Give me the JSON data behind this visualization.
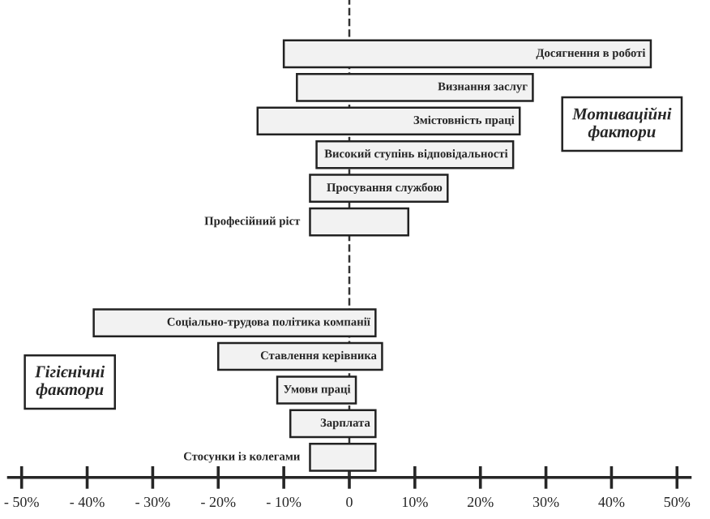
{
  "chart_data": {
    "type": "bar",
    "orientation": "horizontal",
    "categories": [
      "Досягнення в роботі",
      "Визнання заслуг",
      "Змістовність праці",
      "Високий ступінь відповідальності",
      "Просування службою",
      "Професійний ріст",
      null,
      null,
      "Соціально-трудова політика компанії",
      "Ставлення керівника",
      "Умови праці",
      "Зарплата",
      "Стосунки із колегами"
    ],
    "base": [
      -10,
      -8,
      -14,
      -5,
      -6,
      -6,
      null,
      null,
      -39,
      -20,
      -11,
      -9,
      -6
    ],
    "values": [
      56,
      36,
      40,
      30,
      21,
      15,
      null,
      null,
      43,
      25,
      12,
      13,
      10
    ],
    "color": "#f2f2f2",
    "xlim": [
      -52,
      52
    ],
    "xticks": [
      {
        "value": -50,
        "label": "- 50%"
      },
      {
        "value": -40,
        "label": "- 40%"
      },
      {
        "value": -30,
        "label": "- 30%"
      },
      {
        "value": -20,
        "label": "- 20%"
      },
      {
        "value": -10,
        "label": "- 10%"
      },
      0,
      {
        "value": 10,
        "label": "10%"
      },
      {
        "value": 20,
        "label": "20%"
      },
      {
        "value": 30,
        "label": "30%"
      },
      {
        "value": 40,
        "label": "40%"
      },
      {
        "value": 50,
        "label": "50%"
      }
    ],
    "tick_labels": "x",
    "grid": false,
    "legend": false,
    "ref_lines": [
      {
        "axis": "x",
        "value": 0,
        "line_style": "dashed",
        "color": "#333333"
      }
    ],
    "annotations": [
      "Мотиваційні\nфактори",
      "Гігієнічні\nфактори"
    ]
  }
}
